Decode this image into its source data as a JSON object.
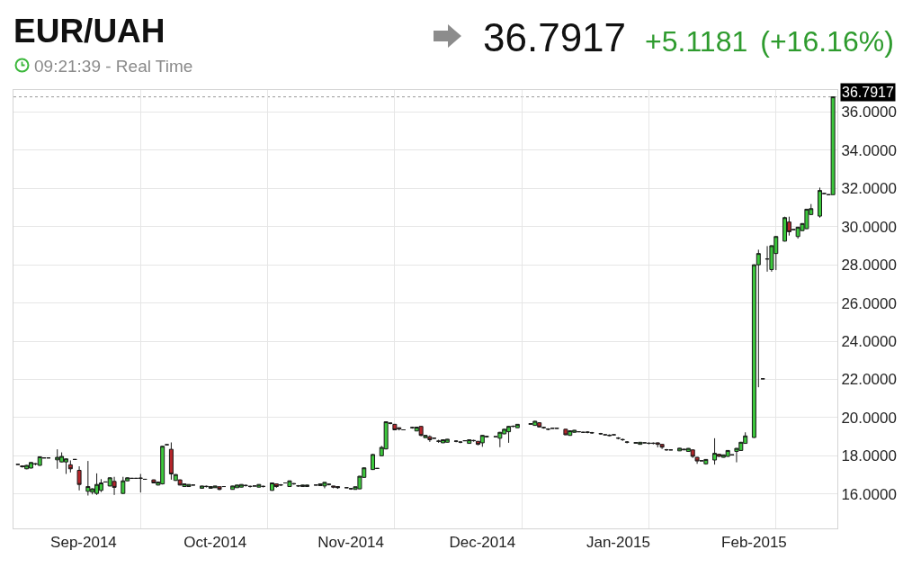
{
  "chart_data": {
    "type": "candlestick",
    "title": "EUR/UAH",
    "subtitle": "09:21:39 - Real Time",
    "annotations": [
      "36.7917",
      "+5.1181",
      "(+16.16%)"
    ],
    "x": [
      "2014-08-17",
      "2014-08-18",
      "2014-08-19",
      "2014-08-20",
      "2014-08-21",
      "2014-08-22",
      "2014-08-23",
      "2014-08-24",
      "2014-08-26",
      "2014-08-27",
      "2014-08-28",
      "2014-08-29",
      "2014-08-30",
      "2014-08-31",
      "2014-09-02",
      "2014-09-03",
      "2014-09-04",
      "2014-09-05",
      "2014-09-06",
      "2014-09-07",
      "2014-09-08",
      "2014-09-10",
      "2014-09-11",
      "2014-09-12",
      "2014-09-13",
      "2014-09-14",
      "2014-09-15",
      "2014-09-17",
      "2014-09-18",
      "2014-09-19",
      "2014-09-20",
      "2014-09-21",
      "2014-09-22",
      "2014-09-23",
      "2014-09-24",
      "2014-09-25",
      "2014-09-26",
      "2014-09-28",
      "2014-09-29",
      "2014-09-30",
      "2014-10-01",
      "2014-10-02",
      "2014-10-03",
      "2014-10-05",
      "2014-10-06",
      "2014-10-07",
      "2014-10-08",
      "2014-10-09",
      "2014-10-10",
      "2014-10-11",
      "2014-10-12",
      "2014-10-14",
      "2014-10-15",
      "2014-10-16",
      "2014-10-17",
      "2014-10-18",
      "2014-10-19",
      "2014-10-20",
      "2014-10-21",
      "2014-10-22",
      "2014-10-24",
      "2014-10-25",
      "2014-10-26",
      "2014-10-27",
      "2014-10-28",
      "2014-10-29",
      "2014-10-31",
      "2014-11-01",
      "2014-11-02",
      "2014-11-03",
      "2014-11-04",
      "2014-11-06",
      "2014-11-07",
      "2014-11-08",
      "2014-11-09",
      "2014-11-10",
      "2014-11-11",
      "2014-11-12",
      "2014-11-13",
      "2014-11-15",
      "2014-11-16",
      "2014-11-17",
      "2014-11-18",
      "2014-11-19",
      "2014-11-20",
      "2014-11-21",
      "2014-11-22",
      "2014-11-23",
      "2014-11-25",
      "2014-11-26",
      "2014-11-27",
      "2014-11-28",
      "2014-11-29",
      "2014-11-30",
      "2014-12-01",
      "2014-12-02",
      "2014-12-04",
      "2014-12-05",
      "2014-12-06",
      "2014-12-07",
      "2014-12-08",
      "2014-12-09",
      "2014-12-12",
      "2014-12-13",
      "2014-12-14",
      "2014-12-15",
      "2014-12-16",
      "2014-12-17",
      "2014-12-18",
      "2014-12-20",
      "2014-12-21",
      "2014-12-22",
      "2014-12-23",
      "2014-12-24",
      "2014-12-25",
      "2014-12-26",
      "2014-12-28",
      "2014-12-29",
      "2014-12-30",
      "2014-12-31",
      "2015-01-01",
      "2015-01-02",
      "2015-01-03",
      "2015-01-05",
      "2015-01-06",
      "2015-01-07",
      "2015-01-08",
      "2015-01-09",
      "2015-01-10",
      "2015-01-11",
      "2015-01-12",
      "2015-01-13",
      "2015-01-15",
      "2015-01-16",
      "2015-01-17",
      "2015-01-18",
      "2015-01-19",
      "2015-01-20",
      "2015-01-21",
      "2015-01-23",
      "2015-01-24",
      "2015-01-25",
      "2015-01-26",
      "2015-01-27",
      "2015-01-28",
      "2015-01-29",
      "2015-01-30",
      "2015-02-01",
      "2015-02-02",
      "2015-02-03",
      "2015-02-04",
      "2015-02-05",
      "2015-02-06",
      "2015-02-08",
      "2015-02-09",
      "2015-02-10",
      "2015-02-11",
      "2015-02-12",
      "2015-02-13",
      "2015-02-14",
      "2015-02-16",
      "2015-02-17",
      "2015-02-18",
      "2015-02-19"
    ],
    "ohlc": [
      [
        17.55,
        17.55,
        17.55,
        17.55
      ],
      [
        17.47,
        17.49,
        17.38,
        17.43
      ],
      [
        17.32,
        17.52,
        17.3,
        17.5
      ],
      [
        17.36,
        17.66,
        17.34,
        17.65
      ],
      [
        17.57,
        17.62,
        17.5,
        17.58
      ],
      [
        17.5,
        17.97,
        17.48,
        17.95
      ],
      [
        17.89,
        17.89,
        17.89,
        17.89
      ],
      [
        17.89,
        17.89,
        17.89,
        17.89
      ],
      [
        17.79,
        18.34,
        17.32,
        17.92
      ],
      [
        17.68,
        18.18,
        17.66,
        17.97
      ],
      [
        17.68,
        17.86,
        17.05,
        17.84
      ],
      [
        17.53,
        17.76,
        17.13,
        17.32
      ],
      [
        17.81,
        17.81,
        17.81,
        17.81
      ],
      [
        17.24,
        17.45,
        16.19,
        16.5
      ],
      [
        16.14,
        17.73,
        15.92,
        16.39
      ],
      [
        16.1,
        16.3,
        15.98,
        16.27
      ],
      [
        16.03,
        17.08,
        15.95,
        16.5
      ],
      [
        16.19,
        16.78,
        16.1,
        16.58
      ],
      [
        16.63,
        16.63,
        16.63,
        16.63
      ],
      [
        16.42,
        16.87,
        16.4,
        16.85
      ],
      [
        16.66,
        16.9,
        15.95,
        16.35
      ],
      [
        16.03,
        16.9,
        16.0,
        16.69
      ],
      [
        16.69,
        16.87,
        16.67,
        16.85
      ],
      [
        16.82,
        16.82,
        16.82,
        16.82
      ],
      [
        16.82,
        16.82,
        16.82,
        16.82
      ],
      [
        16.82,
        17.05,
        16.08,
        16.83
      ],
      [
        16.77,
        16.77,
        16.77,
        16.77
      ],
      [
        16.74,
        16.76,
        16.56,
        16.58
      ],
      [
        16.47,
        16.65,
        16.45,
        16.63
      ],
      [
        16.53,
        18.52,
        16.5,
        18.5
      ],
      [
        18.58,
        18.58,
        18.58,
        18.58
      ],
      [
        18.34,
        18.7,
        16.75,
        17.05
      ],
      [
        16.71,
        17.04,
        16.69,
        17.02
      ],
      [
        16.74,
        16.76,
        16.45,
        16.47
      ],
      [
        16.39,
        16.55,
        16.37,
        16.53
      ],
      [
        16.39,
        16.51,
        16.38,
        16.5
      ],
      [
        16.47,
        16.47,
        16.47,
        16.47
      ],
      [
        16.3,
        16.43,
        16.29,
        16.42
      ],
      [
        16.39,
        16.44,
        16.34,
        16.4
      ],
      [
        16.3,
        16.4,
        16.29,
        16.39
      ],
      [
        16.33,
        16.43,
        16.32,
        16.42
      ],
      [
        16.38,
        16.4,
        16.2,
        16.24
      ],
      [
        16.39,
        16.39,
        16.39,
        16.39
      ],
      [
        16.24,
        16.43,
        16.23,
        16.42
      ],
      [
        16.33,
        16.48,
        16.32,
        16.47
      ],
      [
        16.36,
        16.51,
        16.35,
        16.5
      ],
      [
        16.44,
        16.49,
        16.39,
        16.45
      ],
      [
        16.39,
        16.44,
        16.34,
        16.4
      ],
      [
        16.42,
        16.42,
        16.42,
        16.42
      ],
      [
        16.36,
        16.51,
        16.35,
        16.5
      ],
      [
        16.39,
        16.44,
        16.34,
        16.4
      ],
      [
        16.19,
        16.6,
        16.17,
        16.58
      ],
      [
        16.53,
        16.55,
        16.33,
        16.39
      ],
      [
        16.47,
        16.52,
        16.42,
        16.48
      ],
      [
        16.58,
        16.58,
        16.58,
        16.58
      ],
      [
        16.39,
        16.7,
        16.38,
        16.69
      ],
      [
        16.53,
        16.58,
        16.48,
        16.54
      ],
      [
        16.42,
        16.47,
        16.37,
        16.43
      ],
      [
        16.39,
        16.48,
        16.38,
        16.47
      ],
      [
        16.39,
        16.48,
        16.38,
        16.47
      ],
      [
        16.47,
        16.47,
        16.47,
        16.47
      ],
      [
        16.44,
        16.54,
        16.43,
        16.53
      ],
      [
        16.42,
        16.62,
        16.3,
        16.61
      ],
      [
        16.5,
        16.55,
        16.45,
        16.51
      ],
      [
        16.42,
        16.43,
        16.3,
        16.36
      ],
      [
        16.39,
        16.4,
        16.27,
        16.33
      ],
      [
        16.33,
        16.33,
        16.33,
        16.33
      ],
      [
        16.27,
        16.32,
        16.22,
        16.28
      ],
      [
        16.24,
        16.39,
        16.23,
        16.38
      ],
      [
        16.27,
        16.95,
        16.25,
        16.93
      ],
      [
        16.87,
        17.39,
        16.85,
        17.37
      ],
      [
        17.28,
        18.1,
        17.26,
        18.07
      ],
      [
        17.34,
        17.34,
        17.34,
        17.34
      ],
      [
        18.0,
        18.52,
        17.98,
        18.44
      ],
      [
        18.36,
        19.8,
        18.34,
        19.78
      ],
      [
        19.7,
        19.75,
        19.65,
        19.71
      ],
      [
        19.65,
        19.67,
        19.34,
        19.36
      ],
      [
        19.47,
        19.48,
        19.33,
        19.4
      ],
      [
        19.36,
        19.36,
        19.36,
        19.36
      ],
      [
        19.47,
        19.52,
        19.42,
        19.48
      ],
      [
        19.3,
        19.51,
        19.29,
        19.5
      ],
      [
        19.54,
        19.56,
        19.02,
        19.07
      ],
      [
        18.95,
        19.08,
        18.94,
        19.07
      ],
      [
        19.0,
        19.07,
        18.73,
        18.84
      ],
      [
        18.92,
        18.92,
        18.92,
        18.92
      ],
      [
        18.76,
        18.84,
        18.68,
        18.77
      ],
      [
        18.68,
        18.85,
        18.67,
        18.84
      ],
      [
        18.71,
        18.88,
        18.7,
        18.87
      ],
      [
        18.76,
        18.81,
        18.71,
        18.77
      ],
      [
        18.71,
        18.76,
        18.66,
        18.72
      ],
      [
        18.79,
        18.79,
        18.79,
        18.79
      ],
      [
        18.65,
        18.85,
        18.64,
        18.84
      ],
      [
        18.79,
        18.84,
        18.74,
        18.8
      ],
      [
        18.76,
        18.77,
        18.55,
        18.6
      ],
      [
        18.68,
        19.09,
        18.47,
        19.07
      ],
      [
        19.0,
        19.05,
        18.95,
        19.01
      ],
      [
        19.0,
        19.0,
        19.0,
        19.0
      ],
      [
        18.92,
        19.25,
        18.45,
        19.23
      ],
      [
        19.15,
        19.41,
        19.13,
        19.39
      ],
      [
        19.26,
        19.56,
        18.68,
        19.54
      ],
      [
        19.54,
        19.59,
        19.49,
        19.55
      ],
      [
        19.47,
        19.66,
        19.46,
        19.65
      ],
      [
        19.65,
        19.69,
        19.64,
        19.68
      ],
      [
        19.59,
        19.83,
        19.58,
        19.81
      ],
      [
        19.73,
        19.75,
        19.49,
        19.51
      ],
      [
        19.47,
        19.52,
        19.42,
        19.48
      ],
      [
        19.39,
        19.44,
        19.34,
        19.4
      ],
      [
        19.44,
        19.44,
        19.44,
        19.44
      ],
      [
        19.44,
        19.44,
        19.44,
        19.44
      ],
      [
        19.39,
        19.41,
        19.08,
        19.1
      ],
      [
        19.07,
        19.33,
        19.05,
        19.31
      ],
      [
        19.23,
        19.35,
        19.22,
        19.34
      ],
      [
        19.26,
        19.26,
        19.26,
        19.26
      ],
      [
        19.23,
        19.23,
        19.23,
        19.23
      ],
      [
        19.23,
        19.28,
        19.18,
        19.24
      ],
      [
        19.2,
        19.25,
        19.15,
        19.21
      ],
      [
        19.15,
        19.2,
        19.1,
        19.16
      ],
      [
        19.1,
        19.1,
        19.1,
        19.1
      ],
      [
        19.05,
        19.12,
        19.02,
        19.08
      ],
      [
        19.1,
        19.1,
        19.1,
        19.1
      ],
      [
        18.92,
        18.98,
        18.86,
        18.93
      ],
      [
        18.84,
        18.9,
        18.78,
        18.85
      ],
      [
        18.71,
        18.77,
        18.65,
        18.72
      ],
      [
        18.66,
        18.7,
        18.65,
        18.69
      ],
      [
        18.6,
        18.72,
        18.59,
        18.71
      ],
      [
        18.68,
        18.68,
        18.68,
        18.68
      ],
      [
        18.65,
        18.7,
        18.6,
        18.66
      ],
      [
        18.65,
        18.7,
        18.6,
        18.66
      ],
      [
        18.68,
        18.7,
        18.44,
        18.6
      ],
      [
        18.6,
        18.62,
        18.36,
        18.45
      ],
      [
        18.31,
        18.36,
        18.26,
        18.32
      ],
      [
        18.31,
        18.31,
        18.31,
        18.31
      ],
      [
        18.26,
        18.41,
        18.25,
        18.4
      ],
      [
        18.31,
        18.35,
        18.3,
        18.34
      ],
      [
        18.23,
        18.4,
        18.22,
        18.39
      ],
      [
        18.31,
        18.33,
        17.89,
        17.97
      ],
      [
        17.92,
        17.94,
        17.58,
        17.73
      ],
      [
        17.74,
        17.74,
        17.74,
        17.74
      ],
      [
        17.58,
        17.82,
        17.54,
        17.81
      ],
      [
        17.78,
        18.92,
        17.54,
        18.13
      ],
      [
        18.08,
        18.1,
        17.95,
        17.97
      ],
      [
        17.92,
        18.06,
        17.91,
        18.05
      ],
      [
        17.97,
        18.3,
        17.95,
        18.28
      ],
      [
        18.05,
        18.05,
        18.05,
        18.05
      ],
      [
        18.23,
        18.41,
        17.66,
        18.39
      ],
      [
        18.28,
        18.73,
        18.26,
        18.71
      ],
      [
        18.65,
        19.23,
        18.63,
        19.04
      ],
      [
        18.96,
        28.02,
        18.94,
        28.0
      ],
      [
        28.0,
        28.79,
        21.59,
        28.59
      ],
      [
        22.03,
        22.03,
        22.03,
        22.03
      ],
      [
        28.3,
        28.98,
        27.64,
        28.31
      ],
      [
        27.75,
        29.02,
        27.64,
        29.0
      ],
      [
        28.59,
        29.5,
        27.72,
        29.48
      ],
      [
        29.24,
        30.52,
        29.22,
        30.47
      ],
      [
        30.24,
        30.52,
        29.53,
        29.73
      ],
      [
        29.84,
        29.84,
        29.84,
        29.84
      ],
      [
        29.48,
        29.99,
        29.37,
        29.97
      ],
      [
        29.79,
        30.18,
        29.77,
        30.16
      ],
      [
        29.89,
        30.93,
        29.87,
        30.91
      ],
      [
        30.63,
        31.18,
        30.6,
        30.94
      ],
      [
        30.55,
        32.04,
        30.47,
        31.89
      ],
      [
        31.73,
        31.73,
        31.73,
        31.73
      ],
      [
        31.67,
        31.67,
        31.67,
        31.67
      ],
      [
        31.67,
        36.7917,
        31.67,
        36.7917
      ]
    ],
    "xlim": [
      "2014-08-16",
      "2015-02-20"
    ],
    "xticks": [
      {
        "value": "2014-09-01",
        "label": "Sep-2014"
      },
      {
        "value": "2014-09-14",
        "label": null
      },
      {
        "value": "2014-10-01",
        "label": "Oct-2014"
      },
      {
        "value": "2014-10-13",
        "label": null
      },
      {
        "value": "2014-11-01",
        "label": "Nov-2014"
      },
      {
        "value": "2014-11-11",
        "label": null
      },
      {
        "value": "2014-12-01",
        "label": "Dec-2014"
      },
      {
        "value": "2014-12-10",
        "label": null
      },
      {
        "value": "2015-01-01",
        "label": "Jan-2015"
      },
      {
        "value": "2015-01-08",
        "label": null
      },
      {
        "value": "2015-02-01",
        "label": "Feb-2015"
      },
      {
        "value": "2015-02-06",
        "label": null
      }
    ],
    "ylim": [
      14.2,
      37.15
    ],
    "yticks": [
      {
        "value": 16,
        "label": "16.0000"
      },
      {
        "value": 18,
        "label": "18.0000"
      },
      {
        "value": 20,
        "label": "20.0000"
      },
      {
        "value": 22,
        "label": "22.0000"
      },
      {
        "value": 24,
        "label": "24.0000"
      },
      {
        "value": 26,
        "label": "26.0000"
      },
      {
        "value": 28,
        "label": "28.0000"
      },
      {
        "value": 30,
        "label": "30.0000"
      },
      {
        "value": 32,
        "label": "32.0000"
      },
      {
        "value": 34,
        "label": "34.0000"
      },
      {
        "value": 36,
        "label": "36.0000"
      }
    ],
    "grid": true,
    "ref_lines": [
      {
        "axis": "y",
        "value": 36.7917,
        "label": "36.7917",
        "line_style": "dotted",
        "color": "#999999"
      }
    ]
  }
}
